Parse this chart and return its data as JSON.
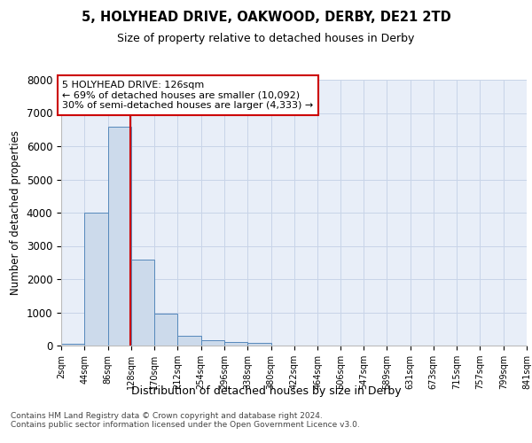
{
  "title1": "5, HOLYHEAD DRIVE, OAKWOOD, DERBY, DE21 2TD",
  "title2": "Size of property relative to detached houses in Derby",
  "xlabel": "Distribution of detached houses by size in Derby",
  "ylabel": "Number of detached properties",
  "bin_edges": [
    2,
    44,
    86,
    128,
    170,
    212,
    254,
    296,
    338,
    380,
    422,
    464,
    506,
    547,
    589,
    631,
    673,
    715,
    757,
    799,
    841
  ],
  "bar_heights": [
    55,
    4000,
    6600,
    2600,
    950,
    300,
    150,
    110,
    70,
    0,
    0,
    0,
    0,
    0,
    0,
    0,
    0,
    0,
    0,
    0
  ],
  "bar_color": "#ccdaeb",
  "bar_edge_color": "#5588bb",
  "grid_color": "#c8d4e8",
  "property_size": 126,
  "annotation_text": "5 HOLYHEAD DRIVE: 126sqm\n← 69% of detached houses are smaller (10,092)\n30% of semi-detached houses are larger (4,333) →",
  "vline_color": "#cc0000",
  "annotation_box_edge": "#cc0000",
  "ylim": [
    0,
    8000
  ],
  "yticks": [
    0,
    1000,
    2000,
    3000,
    4000,
    5000,
    6000,
    7000,
    8000
  ],
  "tick_labels": [
    "2sqm",
    "44sqm",
    "86sqm",
    "128sqm",
    "170sqm",
    "212sqm",
    "254sqm",
    "296sqm",
    "338sqm",
    "380sqm",
    "422sqm",
    "464sqm",
    "506sqm",
    "547sqm",
    "589sqm",
    "631sqm",
    "673sqm",
    "715sqm",
    "757sqm",
    "799sqm",
    "841sqm"
  ],
  "footnote": "Contains HM Land Registry data © Crown copyright and database right 2024.\nContains public sector information licensed under the Open Government Licence v3.0.",
  "background_color": "#ffffff",
  "plot_bg_color": "#e8eef8"
}
